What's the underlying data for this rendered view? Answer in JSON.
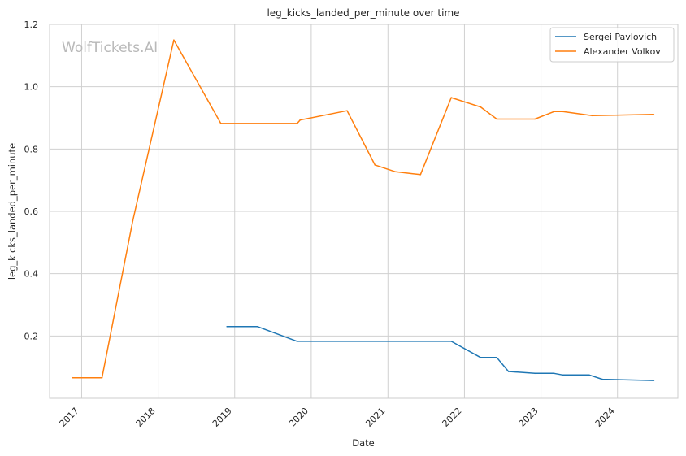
{
  "chart_data": {
    "type": "line",
    "title": "leg_kicks_landed_per_minute over time",
    "xlabel": "Date",
    "ylabel": "leg_kicks_landed_per_minute",
    "watermark": "WolfTickets.AI",
    "x_ticks": [
      "2017",
      "2018",
      "2019",
      "2020",
      "2021",
      "2022",
      "2023",
      "2024"
    ],
    "y_ticks": [
      "0.2",
      "0.4",
      "0.6",
      "0.8",
      "1.0",
      "1.2"
    ],
    "xlim": [
      "2016-08-01",
      "2024-10-15"
    ],
    "ylim": [
      0.0,
      1.2
    ],
    "grid": true,
    "legend_position": "top-right",
    "series": [
      {
        "name": "Sergei Pavlovich",
        "color": "#1f77b4",
        "points": [
          [
            "2018-11-25",
            0.23
          ],
          [
            "2019-04-20",
            0.23
          ],
          [
            "2019-10-26",
            0.183
          ],
          [
            "2021-10-30",
            0.183
          ],
          [
            "2022-03-19",
            0.131
          ],
          [
            "2022-06-04",
            0.131
          ],
          [
            "2022-07-30",
            0.086
          ],
          [
            "2022-12-03",
            0.08
          ],
          [
            "2023-03-04",
            0.08
          ],
          [
            "2023-04-15",
            0.075
          ],
          [
            "2023-08-19",
            0.075
          ],
          [
            "2023-10-21",
            0.061
          ],
          [
            "2024-06-22",
            0.057
          ]
        ]
      },
      {
        "name": "Alexander Volkov",
        "color": "#ff7f0e",
        "points": [
          [
            "2016-11-19",
            0.066
          ],
          [
            "2017-04-08",
            0.066
          ],
          [
            "2017-09-02",
            0.57
          ],
          [
            "2018-03-17",
            1.15
          ],
          [
            "2018-10-27",
            0.882
          ],
          [
            "2019-10-26",
            0.882
          ],
          [
            "2019-11-09",
            0.893
          ],
          [
            "2020-06-20",
            0.923
          ],
          [
            "2020-10-31",
            0.749
          ],
          [
            "2021-02-06",
            0.727
          ],
          [
            "2021-06-05",
            0.718
          ],
          [
            "2021-10-30",
            0.965
          ],
          [
            "2022-03-19",
            0.935
          ],
          [
            "2022-06-04",
            0.896
          ],
          [
            "2022-12-03",
            0.896
          ],
          [
            "2023-03-04",
            0.92
          ],
          [
            "2023-04-15",
            0.92
          ],
          [
            "2023-09-02",
            0.907
          ],
          [
            "2024-06-22",
            0.911
          ]
        ]
      }
    ]
  }
}
